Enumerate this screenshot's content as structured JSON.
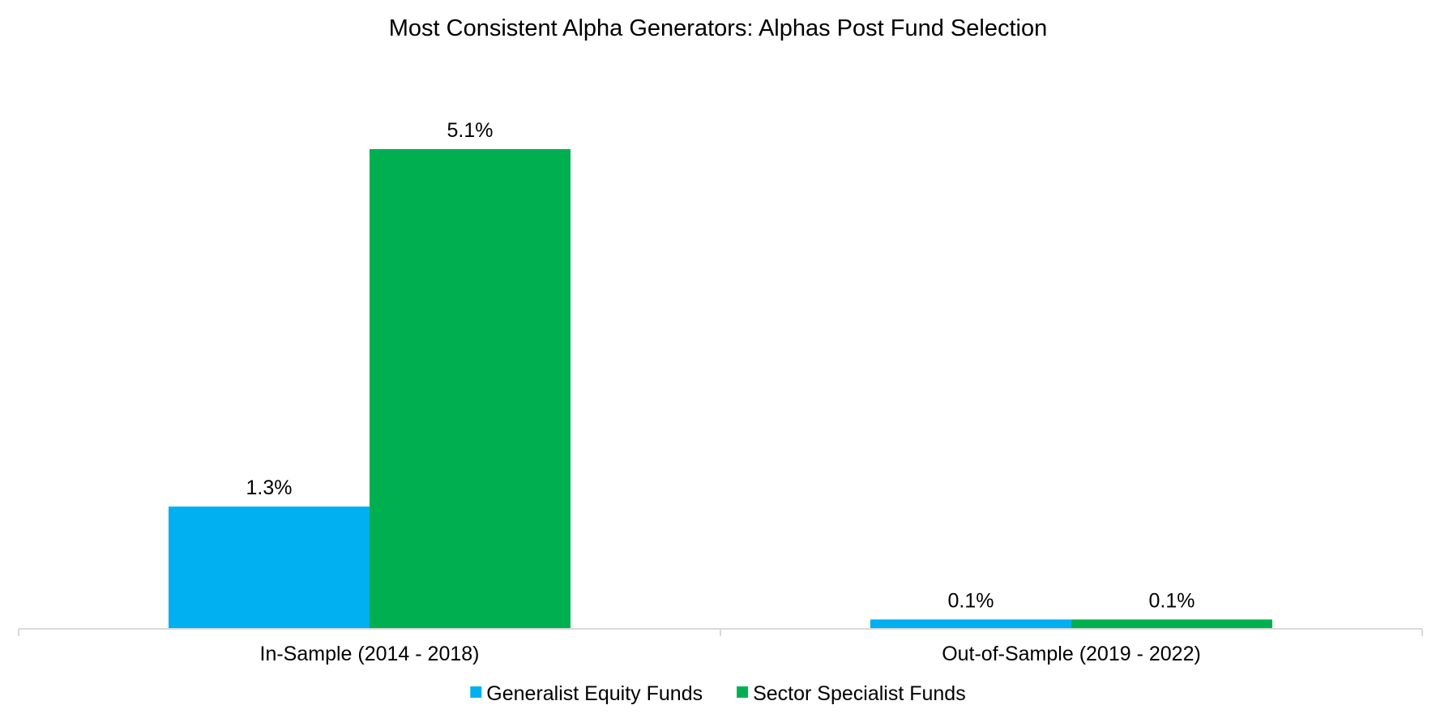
{
  "chart_data": {
    "type": "bar",
    "title": "Most Consistent Alpha Generators: Alphas Post Fund Selection",
    "categories": [
      "In-Sample (2014 - 2018)",
      "Out-of-Sample (2019 - 2022)"
    ],
    "series": [
      {
        "name": "Generalist Equity Funds",
        "values": [
          1.3,
          0.1
        ],
        "labels": [
          "1.3%",
          "0.1%"
        ],
        "color": "#00B0F0"
      },
      {
        "name": "Sector Specialist Funds",
        "values": [
          5.1,
          0.1
        ],
        "labels": [
          "5.1%",
          "0.1%"
        ],
        "color": "#00B050"
      }
    ],
    "ylim": [
      0,
      5.1
    ],
    "grid": false,
    "y_axis_visible": false,
    "legend_position": "bottom"
  }
}
